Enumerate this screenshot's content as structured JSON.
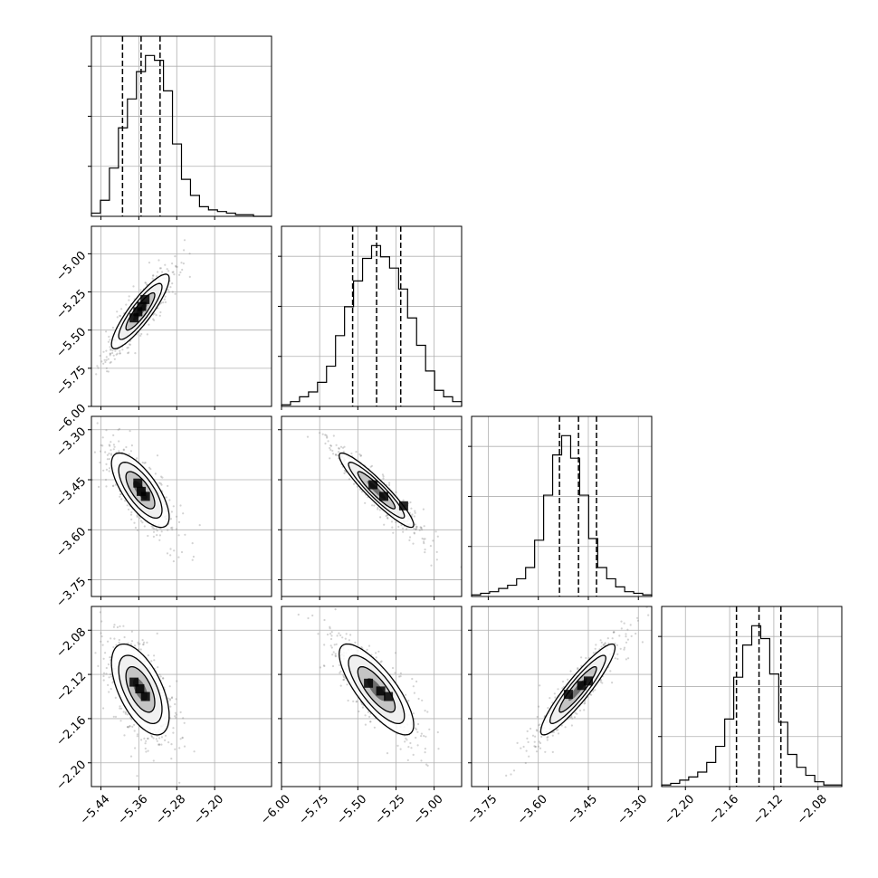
{
  "chart_data": {
    "type": "corner",
    "grid": true,
    "colors": {
      "line": "#000000",
      "grid": "#b0b0b0",
      "scatter": "#808080"
    },
    "params": [
      {
        "range": [
          -5.46,
          -5.08
        ],
        "ticks": [
          -5.44,
          -5.36,
          -5.28,
          -5.2
        ],
        "tick_labels": [
          "−5.44",
          "−5.36",
          "−5.28",
          "−5.20"
        ],
        "quantiles": [
          -5.3944,
          -5.3552,
          -5.3152
        ]
      },
      {
        "range": [
          -6.0,
          -4.82
        ],
        "ticks": [
          -6.0,
          -5.75,
          -5.5,
          -5.25,
          -5.0
        ],
        "tick_labels": [
          "−6.00",
          "−5.75",
          "−5.50",
          "−5.25",
          "−5.00"
        ],
        "quantiles": [
          -5.534,
          -5.377,
          -5.219
        ]
      },
      {
        "range": [
          -3.8,
          -3.26
        ],
        "ticks": [
          -3.75,
          -3.6,
          -3.45,
          -3.3
        ],
        "tick_labels": [
          "−3.75",
          "−3.60",
          "−3.45",
          "−3.30"
        ],
        "quantiles": [
          -3.5365,
          -3.4795,
          -3.4255
        ]
      },
      {
        "range": [
          -2.2215,
          -2.0585
        ],
        "ticks": [
          -2.2,
          -2.16,
          -2.12,
          -2.08
        ],
        "tick_labels": [
          "−2.20",
          "−2.16",
          "−2.12",
          "−2.08"
        ],
        "quantiles": [
          -2.1538,
          -2.1334,
          -2.1136
        ]
      }
    ],
    "histograms": [
      [
        2,
        10,
        30,
        55,
        73,
        90,
        100,
        97,
        78,
        45,
        23,
        13,
        6,
        4,
        3,
        2,
        1,
        1,
        0,
        0
      ],
      [
        1,
        3,
        6,
        9,
        15,
        25,
        44,
        62,
        78,
        92,
        100,
        93,
        86,
        73,
        55,
        38,
        22,
        10,
        6,
        3
      ],
      [
        1,
        2,
        3,
        5,
        7,
        11,
        18,
        35,
        63,
        88,
        100,
        86,
        63,
        36,
        18,
        11,
        6,
        3,
        2,
        1
      ],
      [
        1,
        2,
        4,
        6,
        9,
        15,
        25,
        42,
        68,
        88,
        100,
        92,
        70,
        40,
        20,
        12,
        7,
        3,
        1,
        1
      ]
    ],
    "pairs": [
      {
        "x": 0,
        "y": 1,
        "center": [
          -5.3568,
          -5.378
        ],
        "sd": [
          0.0305,
          0.1223
        ],
        "rho": 0.88,
        "hot": [
          [
            -5.362,
            -5.38
          ],
          [
            -5.354,
            -5.345
          ],
          [
            -5.37,
            -5.42
          ],
          [
            -5.347,
            -5.3
          ]
        ]
      },
      {
        "x": 0,
        "y": 2,
        "center": [
          -5.3568,
          -3.4813
        ],
        "sd": [
          0.0305,
          0.0558
        ],
        "rho": -0.72,
        "hot": [
          [
            -5.355,
            -3.485
          ],
          [
            -5.346,
            -3.5
          ],
          [
            -5.362,
            -3.46
          ]
        ]
      },
      {
        "x": 1,
        "y": 2,
        "center": [
          -5.378,
          -3.4813
        ],
        "sd": [
          0.1223,
          0.0558
        ],
        "rho": -0.93,
        "hot": [
          [
            -5.4,
            -3.465
          ],
          [
            -5.33,
            -3.5
          ],
          [
            -5.2,
            -3.528
          ]
        ]
      },
      {
        "x": 0,
        "y": 3,
        "center": [
          -5.3568,
          -2.1336
        ],
        "sd": [
          0.0305,
          0.0206
        ],
        "rho": -0.58,
        "hot": [
          [
            -5.37,
            -2.127
          ],
          [
            -5.358,
            -2.133
          ],
          [
            -5.346,
            -2.14
          ]
        ]
      },
      {
        "x": 1,
        "y": 3,
        "center": [
          -5.378,
          -2.1336
        ],
        "sd": [
          0.1223,
          0.0206
        ],
        "rho": -0.78,
        "hot": [
          [
            -5.43,
            -2.128
          ],
          [
            -5.35,
            -2.135
          ],
          [
            -5.3,
            -2.14
          ]
        ]
      },
      {
        "x": 2,
        "y": 3,
        "center": [
          -3.4813,
          -2.1336
        ],
        "sd": [
          0.0558,
          0.0206
        ],
        "rho": 0.92,
        "hot": [
          [
            -3.51,
            -2.138
          ],
          [
            -3.47,
            -2.13
          ],
          [
            -3.45,
            -2.126
          ]
        ]
      }
    ]
  }
}
